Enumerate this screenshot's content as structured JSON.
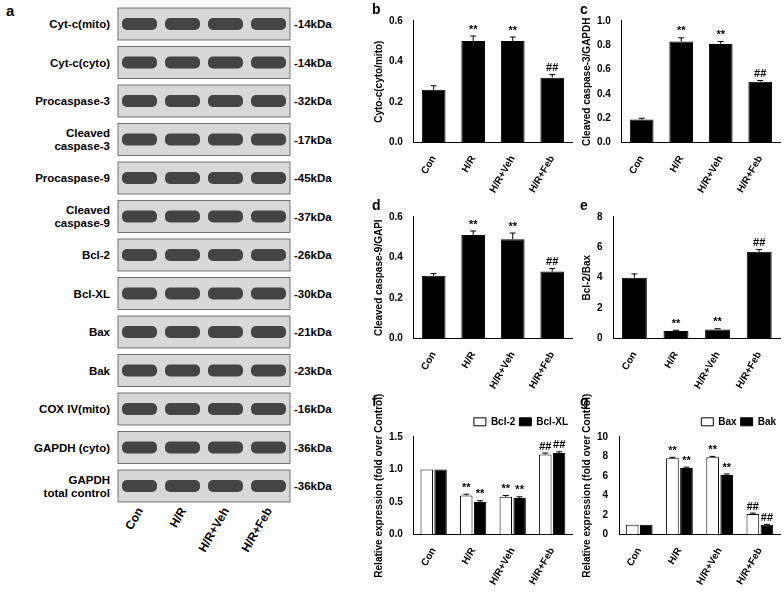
{
  "blot": {
    "title": "a",
    "rows": [
      {
        "label": [
          "Cyt-c(mito)"
        ],
        "size": "-14kDa"
      },
      {
        "label": [
          "Cyt-c(cyto)"
        ],
        "size": "-14kDa"
      },
      {
        "label": [
          "Procaspase-3"
        ],
        "size": "-32kDa"
      },
      {
        "label": [
          "Cleaved",
          "caspase-3"
        ],
        "size": "-17kDa"
      },
      {
        "label": [
          "Procaspase-9"
        ],
        "size": "-45kDa"
      },
      {
        "label": [
          "Cleaved",
          "caspase-9"
        ],
        "size": "-37kDa"
      },
      {
        "label": [
          "Bcl-2"
        ],
        "size": "-26kDa"
      },
      {
        "label": [
          "Bcl-XL"
        ],
        "size": "-30kDa"
      },
      {
        "label": [
          "Bax"
        ],
        "size": "-21kDa"
      },
      {
        "label": [
          "Bak"
        ],
        "size": "-23kDa"
      },
      {
        "label": [
          "COX IV(mito)"
        ],
        "size": "-16kDa"
      },
      {
        "label": [
          "GAPDH (cyto)"
        ],
        "size": "-36kDa"
      },
      {
        "label": [
          "GAPDH",
          "total control"
        ],
        "size": "-36kDa"
      }
    ],
    "lanes": [
      "Con",
      "H/R",
      "H/R+Veh",
      "H/R+Feb"
    ]
  },
  "chart_data": [
    {
      "type": "bar",
      "title": "b",
      "y_label": "Cyto-c(cyto/mito)",
      "categories": [
        "Con",
        "H/R",
        "H/R+Veh",
        "H/R+Feb"
      ],
      "values": [
        0.26,
        0.5,
        0.5,
        0.32
      ],
      "errors": [
        0.02,
        0.025,
        0.02,
        0.015
      ],
      "marks": [
        null,
        "**",
        "**",
        "##"
      ],
      "color": "#000000",
      "ylim": [
        0,
        0.6
      ],
      "yticks": [
        {
          "value": 0,
          "label": "0.0"
        },
        0.2,
        0.4,
        0.6
      ],
      "grid": false
    },
    {
      "type": "bar",
      "title": "c",
      "y_label": "Cleaved caspase-3/GAPDH",
      "categories": [
        "Con",
        "H/R",
        "H/R+Veh",
        "H/R+Feb"
      ],
      "values": [
        0.19,
        0.83,
        0.81,
        0.5
      ],
      "errors": [
        0.01,
        0.03,
        0.02,
        0.01
      ],
      "marks": [
        null,
        "**",
        "**",
        "##"
      ],
      "color": "#000000",
      "ylim": [
        0,
        1.0
      ],
      "yticks": [
        {
          "value": 0,
          "label": "0.0"
        },
        0.2,
        0.4,
        0.6,
        0.8,
        {
          "value": 1,
          "label": "1.0"
        }
      ],
      "grid": false
    },
    {
      "type": "bar",
      "title": "d",
      "y_label": "Cleaved caspase-9/GAPI",
      "categories": [
        "Con",
        "H/R",
        "H/R+Veh",
        "H/R+Feb"
      ],
      "values": [
        0.31,
        0.51,
        0.49,
        0.33
      ],
      "errors": [
        0.01,
        0.02,
        0.03,
        0.015
      ],
      "marks": [
        null,
        "**",
        "**",
        "##"
      ],
      "color": "#000000",
      "ylim": [
        0,
        0.6
      ],
      "yticks": [
        {
          "value": 0,
          "label": "0.0"
        },
        0.2,
        0.4,
        0.6
      ],
      "grid": false
    },
    {
      "type": "bar",
      "title": "e",
      "y_label": "Bcl-2/Bax",
      "categories": [
        "Con",
        "H/R",
        "H/R+Veh",
        "H/R+Feb"
      ],
      "values": [
        4.0,
        0.5,
        0.6,
        5.7
      ],
      "errors": [
        0.25,
        0.05,
        0.05,
        0.15
      ],
      "marks": [
        null,
        "**",
        "**",
        "##"
      ],
      "color": "#000000",
      "ylim": [
        0,
        8
      ],
      "yticks": [
        0,
        2,
        4,
        6,
        8
      ],
      "grid": false
    },
    {
      "type": "bar",
      "title": "f",
      "y_label": "Relative expression (fold over Control)",
      "categories": [
        "Con",
        "H/R",
        "H/R+Veh",
        "H/R+Feb"
      ],
      "series": [
        {
          "name": "Bcl-2",
          "color": "#ffffff",
          "values": [
            1.0,
            0.6,
            0.58,
            1.23
          ],
          "errors": [
            0.0,
            0.02,
            0.02,
            0.02
          ],
          "marks": [
            null,
            "**",
            "**",
            "##"
          ]
        },
        {
          "name": "Bcl-XL",
          "color": "#000000",
          "values": [
            1.0,
            0.5,
            0.56,
            1.25
          ],
          "errors": [
            0.0,
            0.02,
            0.02,
            0.02
          ],
          "marks": [
            null,
            "**",
            "**",
            "##"
          ]
        }
      ],
      "legend": "upper right",
      "ylim": [
        0,
        1.5
      ],
      "yticks": [
        {
          "value": 0,
          "label": "0.0"
        },
        0.5,
        {
          "value": 1,
          "label": "1.0"
        },
        1.5
      ],
      "grid": false
    },
    {
      "type": "bar",
      "title": "g",
      "y_label": "Relative expression (fold over Control)",
      "categories": [
        "Con",
        "H/R",
        "H/R+Veh",
        "H/R+Feb"
      ],
      "series": [
        {
          "name": "Bax",
          "color": "#ffffff",
          "values": [
            1.0,
            7.8,
            7.9,
            2.1
          ],
          "errors": [
            0.0,
            0.1,
            0.1,
            0.1
          ],
          "marks": [
            null,
            "**",
            "**",
            "##"
          ]
        },
        {
          "name": "Bak",
          "color": "#000000",
          "values": [
            1.0,
            6.8,
            6.1,
            1.0
          ],
          "errors": [
            0.0,
            0.1,
            0.1,
            0.05
          ],
          "marks": [
            null,
            "**",
            "**",
            "##"
          ]
        }
      ],
      "legend": "upper right",
      "ylim": [
        0,
        10
      ],
      "yticks": [
        0,
        2,
        4,
        6,
        8,
        10
      ],
      "grid": false
    }
  ]
}
